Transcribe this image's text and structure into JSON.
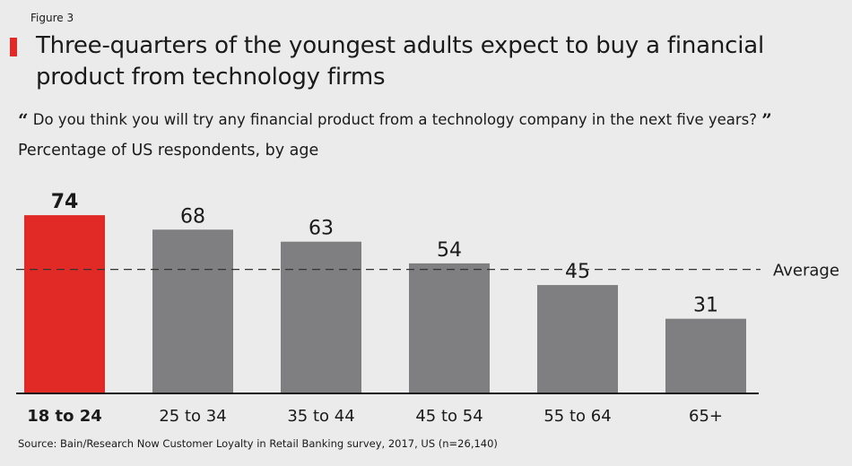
{
  "figure_label": "Figure 3",
  "title": "Three-quarters of the youngest adults expect to buy a financial product from technology firms",
  "question": {
    "open_quote": "“",
    "text": "Do you think you will try any financial product from a technology company in the next five years?",
    "close_quote": "”"
  },
  "subtitle": "Percentage of US respondents, by age",
  "source": "Source: Bain/Research Now Customer Loyalty in Retail Banking survey, 2017, US (n=26,140)",
  "colors": {
    "highlight": "#e12a26",
    "bar": "#7f7f82",
    "background": "#ebebeb"
  },
  "chart_data": {
    "type": "bar",
    "categories": [
      "18 to 24",
      "25 to 34",
      "35 to 44",
      "45 to 54",
      "55 to 64",
      "65+"
    ],
    "values": [
      74,
      68,
      63,
      54,
      45,
      31
    ],
    "highlight_index": 0,
    "average": {
      "label": "Average",
      "value": 51.5
    },
    "ylim": [
      0,
      80
    ],
    "title": "Percentage of US respondents, by age",
    "xlabel": "",
    "ylabel": ""
  }
}
